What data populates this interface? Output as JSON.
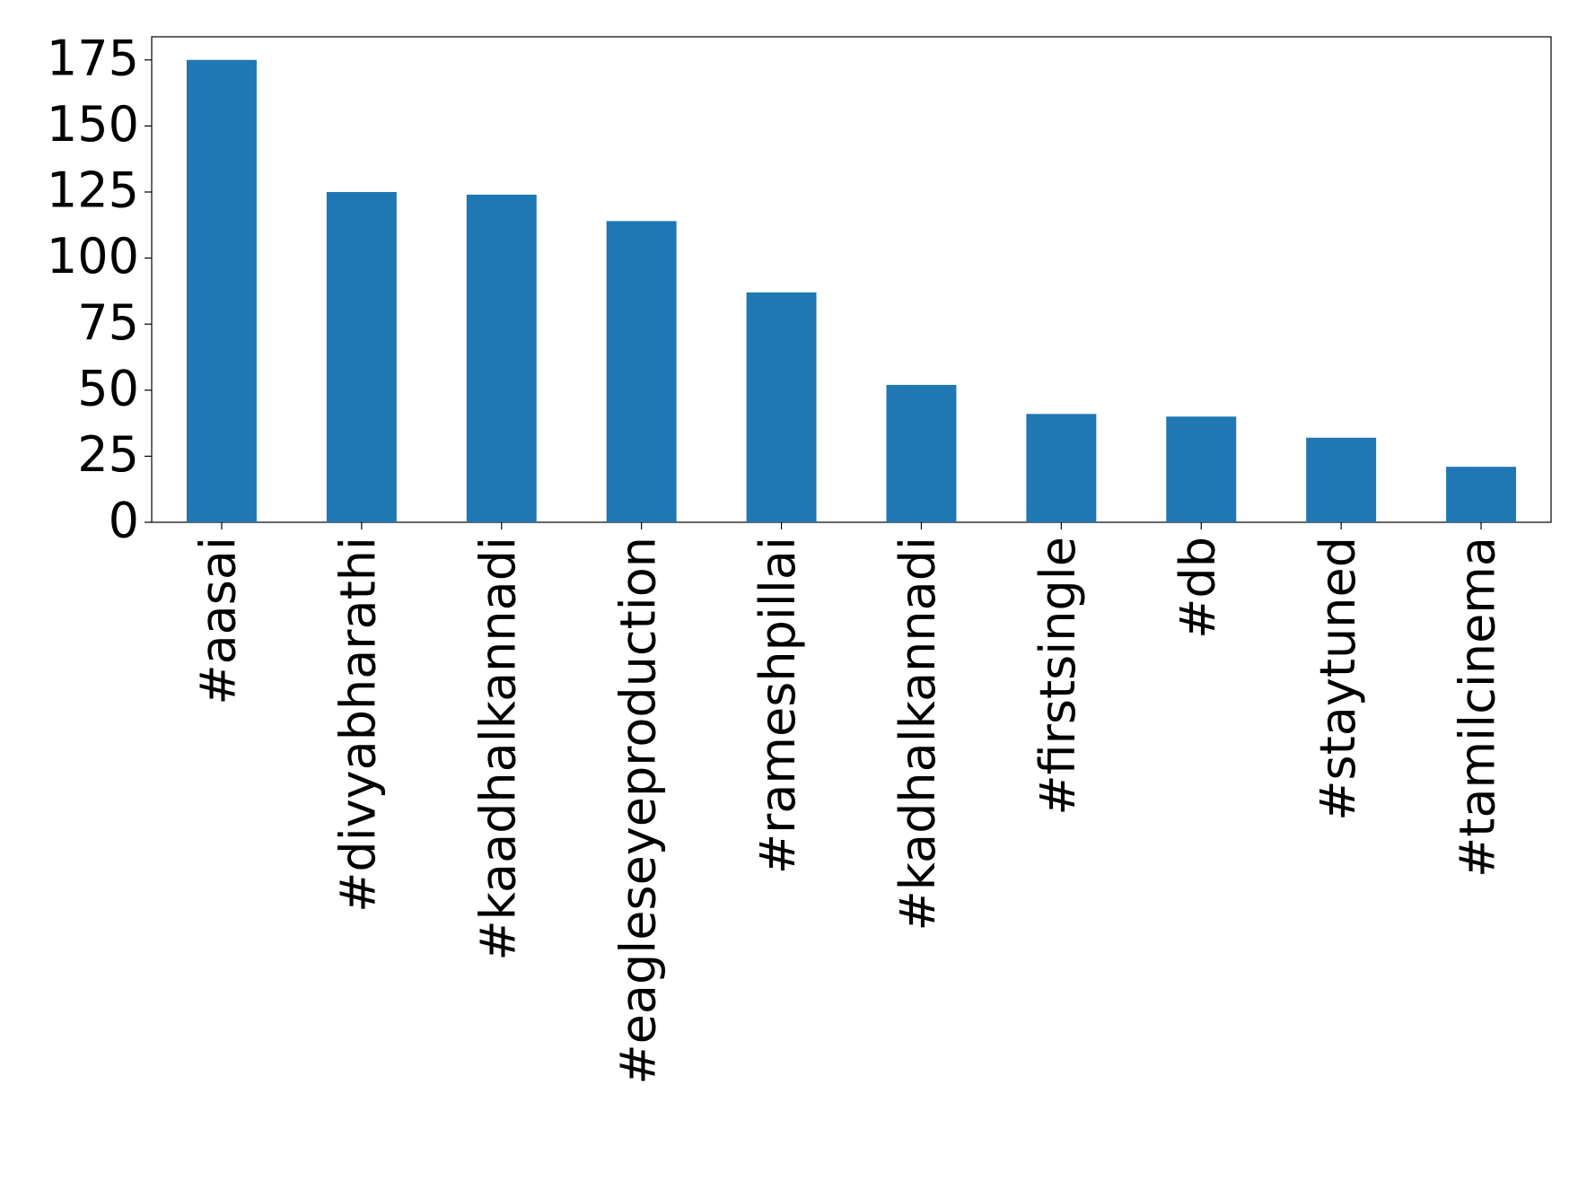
{
  "chart_data": {
    "type": "bar",
    "categories": [
      "#aasai",
      "#divyabharathi",
      "#kaadhalkannadi",
      "#eagleseyeproduction",
      "#rameshpillai",
      "#kadhalkannadi",
      "#firstsingle",
      "#db",
      "#staytuned",
      "#tamilcinema"
    ],
    "values": [
      175,
      125,
      124,
      114,
      87,
      52,
      41,
      40,
      32,
      21
    ],
    "color": "#1f77b4",
    "ylim": [
      0,
      183.75
    ],
    "yticks": [
      0,
      25,
      50,
      75,
      100,
      125,
      150,
      175
    ],
    "grid": false
  }
}
